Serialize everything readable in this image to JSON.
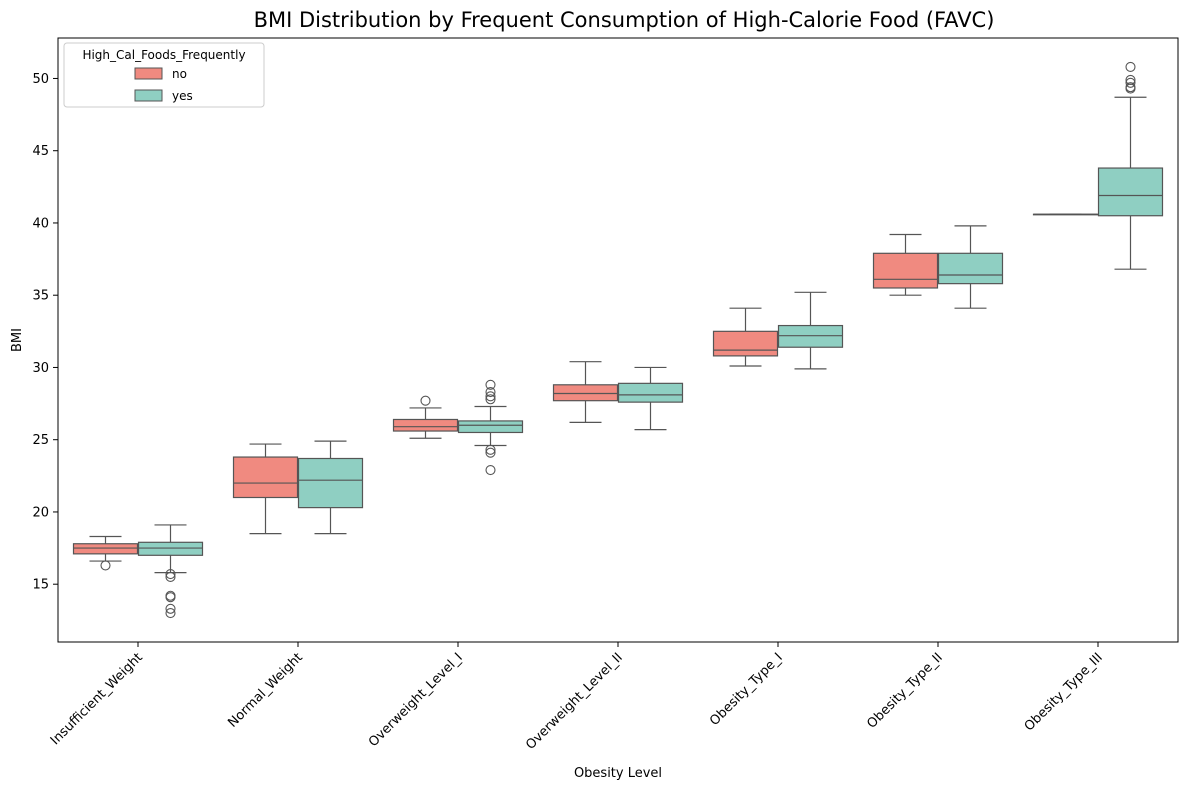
{
  "chart_data": {
    "type": "box",
    "title": "BMI Distribution by Frequent Consumption of High-Calorie Food (FAVC)",
    "xlabel": "Obesity Level",
    "ylabel": "BMI",
    "ylim": [
      11,
      52.8
    ],
    "yticks": [
      15,
      20,
      25,
      30,
      35,
      40,
      45,
      50
    ],
    "legend": {
      "title": "High_Cal_Foods_Frequently",
      "placement": "top-left",
      "entries": [
        {
          "name": "no",
          "color": "#f08a80"
        },
        {
          "name": "yes",
          "color": "#8fcfc2"
        }
      ]
    },
    "categories": [
      "Insufficient_Weight",
      "Normal_Weight",
      "Overweight_Level_I",
      "Overweight_Level_II",
      "Obesity_Type_I",
      "Obesity_Type_II",
      "Obesity_Type_III"
    ],
    "series": [
      {
        "name": "no",
        "color": "#f08a80",
        "boxes": [
          {
            "whislo": 16.6,
            "q1": 17.1,
            "med": 17.5,
            "q3": 17.8,
            "whishi": 18.3,
            "fliers": [
              16.3
            ]
          },
          {
            "whislo": 18.5,
            "q1": 21.0,
            "med": 22.0,
            "q3": 23.8,
            "whishi": 24.7,
            "fliers": []
          },
          {
            "whislo": 25.1,
            "q1": 25.6,
            "med": 25.9,
            "q3": 26.4,
            "whishi": 27.2,
            "fliers": [
              27.7
            ]
          },
          {
            "whislo": 26.2,
            "q1": 27.7,
            "med": 28.2,
            "q3": 28.8,
            "whishi": 30.4,
            "fliers": []
          },
          {
            "whislo": 30.1,
            "q1": 30.8,
            "med": 31.2,
            "q3": 32.5,
            "whishi": 34.1,
            "fliers": []
          },
          {
            "whislo": 35.0,
            "q1": 35.5,
            "med": 36.1,
            "q3": 37.9,
            "whishi": 39.2,
            "fliers": []
          },
          {
            "whislo": 40.6,
            "q1": 40.6,
            "med": 40.6,
            "q3": 40.6,
            "whishi": 40.6,
            "fliers": []
          }
        ]
      },
      {
        "name": "yes",
        "color": "#8fcfc2",
        "boxes": [
          {
            "whislo": 15.8,
            "q1": 17.0,
            "med": 17.5,
            "q3": 17.9,
            "whishi": 19.1,
            "fliers": [
              15.7,
              15.5,
              14.2,
              14.1,
              13.3,
              13.0
            ]
          },
          {
            "whislo": 18.5,
            "q1": 20.3,
            "med": 22.2,
            "q3": 23.7,
            "whishi": 24.9,
            "fliers": []
          },
          {
            "whislo": 24.6,
            "q1": 25.5,
            "med": 26.0,
            "q3": 26.3,
            "whishi": 27.3,
            "fliers": [
              28.8,
              28.3,
              28.0,
              27.8,
              24.3,
              24.1,
              22.9
            ]
          },
          {
            "whislo": 25.7,
            "q1": 27.6,
            "med": 28.1,
            "q3": 28.9,
            "whishi": 30.0,
            "fliers": []
          },
          {
            "whislo": 29.9,
            "q1": 31.4,
            "med": 32.2,
            "q3": 32.9,
            "whishi": 35.2,
            "fliers": []
          },
          {
            "whislo": 34.1,
            "q1": 35.8,
            "med": 36.4,
            "q3": 37.9,
            "whishi": 39.8,
            "fliers": []
          },
          {
            "whislo": 36.8,
            "q1": 40.5,
            "med": 41.9,
            "q3": 43.8,
            "whishi": 48.7,
            "fliers": [
              50.8,
              49.9,
              49.7,
              49.4,
              49.3
            ]
          }
        ]
      }
    ]
  }
}
